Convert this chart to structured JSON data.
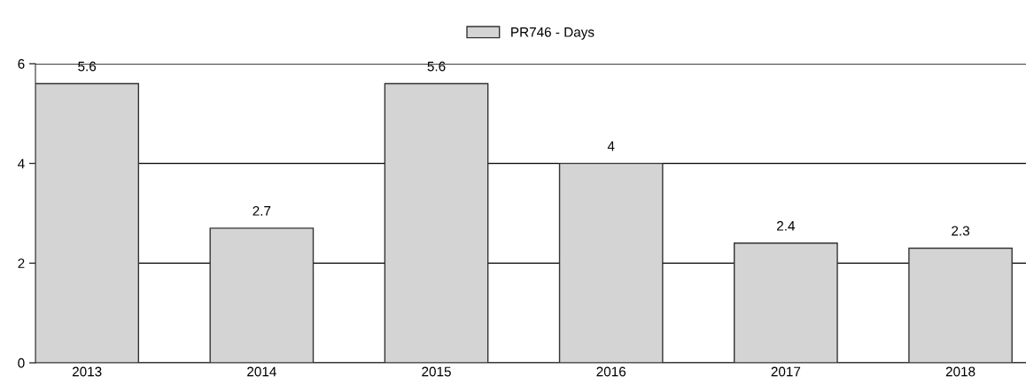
{
  "chart_data": {
    "type": "bar",
    "categories": [
      "2013",
      "2014",
      "2015",
      "2016",
      "2017",
      "2018"
    ],
    "series": [
      {
        "name": "PR746 - Days",
        "color": "#d4d4d4",
        "values": [
          5.6,
          2.7,
          5.6,
          4,
          2.4,
          2.3
        ]
      }
    ],
    "ylim": [
      0,
      6
    ],
    "yticks": [
      0,
      2,
      4,
      6
    ],
    "grid": "y",
    "legend": "top",
    "data_labels": true
  }
}
